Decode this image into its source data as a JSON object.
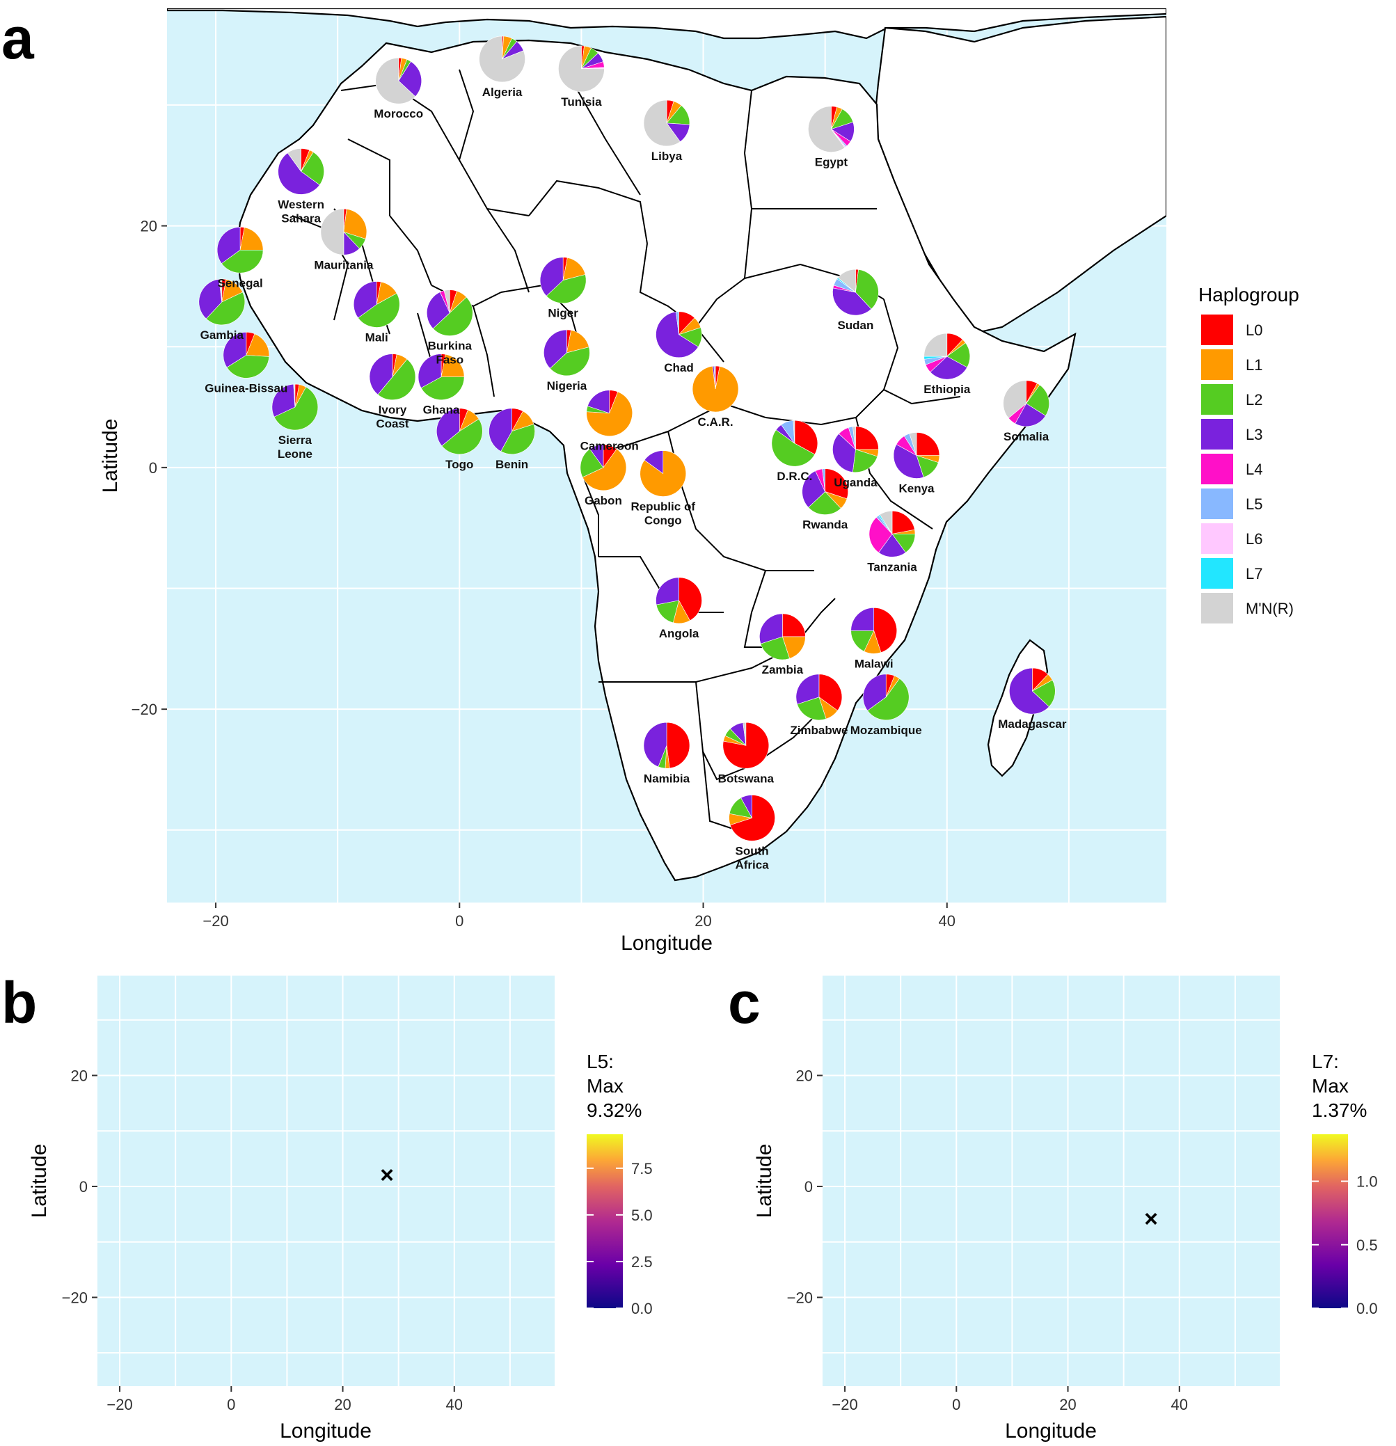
{
  "panel_a": {
    "letter": "a",
    "xlabel": "Longitude",
    "ylabel": "Latitude",
    "x_ticks": [
      "−20",
      "0",
      "20",
      "40"
    ],
    "y_ticks": [
      "20",
      "0",
      "−20"
    ],
    "legend_title": "Haplogroup",
    "haplogroups": [
      {
        "name": "L0",
        "color": "#ff0000"
      },
      {
        "name": "L1",
        "color": "#ff9a00"
      },
      {
        "name": "L2",
        "color": "#55cc22"
      },
      {
        "name": "L3",
        "color": "#7a22dd"
      },
      {
        "name": "L4",
        "color": "#ff10c8"
      },
      {
        "name": "L5",
        "color": "#88b8ff"
      },
      {
        "name": "L6",
        "color": "#ffc8ff"
      },
      {
        "name": "L7",
        "color": "#22e6ff"
      },
      {
        "name": "M'N(R)",
        "color": "#d3d3d3"
      }
    ]
  },
  "countries": [
    {
      "name": "Morocco",
      "lon": -5.0,
      "lat": 32.0,
      "pie": [
        2,
        4,
        3,
        28,
        0,
        0,
        0,
        0,
        63
      ]
    },
    {
      "name": "Algeria",
      "lon": 3.5,
      "lat": 33.8,
      "pie": [
        1,
        6,
        4,
        8,
        0,
        0,
        0,
        0,
        81
      ]
    },
    {
      "name": "Tunisia",
      "lon": 10.0,
      "lat": 33.0,
      "pie": [
        2,
        5,
        6,
        7,
        4,
        0,
        1,
        0,
        75
      ]
    },
    {
      "name": "Libya",
      "lon": 17.0,
      "lat": 28.5,
      "pie": [
        5,
        6,
        15,
        14,
        0,
        0,
        0,
        0,
        60
      ]
    },
    {
      "name": "Egypt",
      "lon": 30.5,
      "lat": 28.0,
      "pie": [
        4,
        4,
        12,
        14,
        4,
        1,
        1,
        0,
        60
      ]
    },
    {
      "name": "Western Sahara",
      "lon": -13.0,
      "lat": 24.5,
      "pie": [
        6,
        3,
        26,
        55,
        0,
        0,
        0,
        0,
        10
      ]
    },
    {
      "name": "Mauritania",
      "lon": -9.5,
      "lat": 19.5,
      "pie": [
        2,
        28,
        8,
        12,
        0,
        0,
        0,
        0,
        50
      ]
    },
    {
      "name": "Senegal",
      "lon": -18.0,
      "lat": 18.0,
      "pie": [
        3,
        22,
        40,
        35,
        0,
        0,
        0,
        0,
        0
      ]
    },
    {
      "name": "Gambia",
      "lon": -19.5,
      "lat": 13.7,
      "pie": [
        3,
        15,
        44,
        36,
        0,
        0,
        0,
        0,
        2
      ]
    },
    {
      "name": "Guinea-Bissau",
      "lon": -17.5,
      "lat": 9.3,
      "pie": [
        6,
        20,
        40,
        34,
        0,
        0,
        0,
        0,
        0
      ]
    },
    {
      "name": "Sierra Leone",
      "lon": -13.5,
      "lat": 5.0,
      "pie": [
        3,
        5,
        60,
        31,
        0,
        0,
        0,
        0,
        1
      ]
    },
    {
      "name": "Mali",
      "lon": -6.8,
      "lat": 13.5,
      "pie": [
        3,
        14,
        48,
        35,
        0,
        0,
        0,
        0,
        0
      ]
    },
    {
      "name": "Burkina Faso",
      "lon": -0.8,
      "lat": 12.8,
      "pie": [
        5,
        8,
        50,
        30,
        3,
        0,
        0,
        0,
        4
      ]
    },
    {
      "name": "Ivory Coast",
      "lon": -5.5,
      "lat": 7.5,
      "pie": [
        3,
        8,
        50,
        39,
        0,
        0,
        0,
        0,
        0
      ]
    },
    {
      "name": "Ghana",
      "lon": -1.5,
      "lat": 7.5,
      "pie": [
        3,
        22,
        42,
        33,
        0,
        0,
        0,
        0,
        0
      ]
    },
    {
      "name": "Togo",
      "lon": 0.0,
      "lat": 3.0,
      "pie": [
        6,
        10,
        48,
        36,
        0,
        0,
        0,
        0,
        0
      ]
    },
    {
      "name": "Benin",
      "lon": 4.3,
      "lat": 3.0,
      "pie": [
        8,
        12,
        38,
        42,
        0,
        0,
        0,
        0,
        0
      ]
    },
    {
      "name": "Niger",
      "lon": 8.5,
      "lat": 15.5,
      "pie": [
        3,
        18,
        42,
        37,
        0,
        0,
        0,
        0,
        0
      ]
    },
    {
      "name": "Nigeria",
      "lon": 8.8,
      "lat": 9.5,
      "pie": [
        3,
        18,
        42,
        37,
        0,
        0,
        0,
        0,
        0
      ]
    },
    {
      "name": "Chad",
      "lon": 18.0,
      "lat": 11.0,
      "pie": [
        12,
        8,
        14,
        64,
        0,
        2,
        0,
        0,
        0
      ]
    },
    {
      "name": "Cameroon",
      "lon": 12.3,
      "lat": 4.5,
      "pie": [
        6,
        70,
        4,
        20,
        0,
        0,
        0,
        0,
        0
      ]
    },
    {
      "name": "C.A.R.",
      "lon": 21.0,
      "lat": 6.5,
      "pie": [
        3,
        95,
        0,
        1,
        0,
        1,
        0,
        0,
        0
      ]
    },
    {
      "name": "Gabon",
      "lon": 11.8,
      "lat": 0.0,
      "pie": [
        10,
        58,
        22,
        10,
        0,
        0,
        0,
        0,
        0
      ]
    },
    {
      "name": "Republic of Congo",
      "lon": 16.7,
      "lat": -0.5,
      "pie": [
        0,
        85,
        0,
        15,
        0,
        0,
        0,
        0,
        0
      ]
    },
    {
      "name": "Sudan",
      "lon": 32.5,
      "lat": 14.5,
      "pie": [
        2,
        0,
        36,
        40,
        2,
        5,
        0,
        1,
        14
      ]
    },
    {
      "name": "Ethiopia",
      "lon": 40.0,
      "lat": 9.2,
      "pie": [
        12,
        3,
        18,
        30,
        6,
        4,
        0,
        2,
        25
      ]
    },
    {
      "name": "Somalia",
      "lon": 46.5,
      "lat": 5.3,
      "pie": [
        8,
        2,
        24,
        24,
        6,
        0,
        0,
        0,
        36
      ]
    },
    {
      "name": "D.R.C.",
      "lon": 27.5,
      "lat": 2.0,
      "pie": [
        33,
        0,
        52,
        5,
        0,
        9,
        0,
        0,
        1
      ]
    },
    {
      "name": "Uganda",
      "lon": 32.5,
      "lat": 1.5,
      "pie": [
        25,
        5,
        22,
        35,
        8,
        3,
        0,
        0,
        2
      ]
    },
    {
      "name": "Kenya",
      "lon": 37.5,
      "lat": 1.0,
      "pie": [
        25,
        5,
        15,
        38,
        8,
        4,
        0,
        0,
        5
      ]
    },
    {
      "name": "Rwanda",
      "lon": 30.0,
      "lat": -2.0,
      "pie": [
        30,
        8,
        25,
        30,
        5,
        2,
        0,
        0,
        0
      ]
    },
    {
      "name": "Tanzania",
      "lon": 35.5,
      "lat": -5.5,
      "pie": [
        22,
        3,
        15,
        20,
        28,
        2,
        0,
        1,
        9
      ]
    },
    {
      "name": "Angola",
      "lon": 18.0,
      "lat": -11.0,
      "pie": [
        42,
        12,
        18,
        28,
        0,
        0,
        0,
        0,
        0
      ]
    },
    {
      "name": "Zambia",
      "lon": 26.5,
      "lat": -14.0,
      "pie": [
        25,
        20,
        25,
        30,
        0,
        0,
        0,
        0,
        0
      ]
    },
    {
      "name": "Malawi",
      "lon": 34.0,
      "lat": -13.5,
      "pie": [
        45,
        12,
        18,
        25,
        0,
        0,
        0,
        0,
        0
      ]
    },
    {
      "name": "Zimbabwe",
      "lon": 29.5,
      "lat": -19.0,
      "pie": [
        35,
        10,
        25,
        30,
        0,
        0,
        0,
        0,
        0
      ]
    },
    {
      "name": "Mozambique",
      "lon": 35.0,
      "lat": -19.0,
      "pie": [
        6,
        4,
        55,
        35,
        0,
        0,
        0,
        0,
        0
      ]
    },
    {
      "name": "Madagascar",
      "lon": 47.0,
      "lat": -18.5,
      "pie": [
        12,
        5,
        20,
        63,
        0,
        0,
        0,
        0,
        0
      ]
    },
    {
      "name": "Namibia",
      "lon": 17.0,
      "lat": -23.0,
      "pie": [
        48,
        3,
        5,
        44,
        0,
        0,
        0,
        0,
        0
      ]
    },
    {
      "name": "Botswana",
      "lon": 23.5,
      "lat": -23.0,
      "pie": [
        78,
        4,
        6,
        10,
        0,
        0,
        0,
        0,
        2
      ]
    },
    {
      "name": "South Africa",
      "lon": 24.0,
      "lat": -29.0,
      "pie": [
        70,
        8,
        14,
        8,
        0,
        0,
        0,
        0,
        0
      ]
    }
  ],
  "panel_b": {
    "letter": "b",
    "legend_title": [
      "L5:",
      "Max",
      "9.32%"
    ],
    "scale_ticks": [
      "7.5",
      "5.0",
      "2.5",
      "0.0"
    ],
    "xlabel": "Longitude",
    "ylabel": "Latitude",
    "x_ticks": [
      "−20",
      "0",
      "20",
      "40"
    ],
    "y_ticks": [
      "20",
      "0",
      "−20"
    ],
    "max_marker": "×"
  },
  "panel_c": {
    "letter": "c",
    "legend_title": [
      "L7:",
      "Max",
      "1.37%"
    ],
    "scale_ticks": [
      "1.0",
      "0.5",
      "0.0"
    ],
    "xlabel": "Longitude",
    "ylabel": "Latitude",
    "x_ticks": [
      "−20",
      "0",
      "20",
      "40"
    ],
    "y_ticks": [
      "20",
      "0",
      "−20"
    ],
    "max_marker": "×"
  },
  "colors": {
    "ocean": "#d6f3fb",
    "land": "#ffffff",
    "non_africa": "#d3d3d3",
    "scale_low": "#0d0887",
    "scale_mid": "#cc4778",
    "scale_high": "#f0f921"
  }
}
